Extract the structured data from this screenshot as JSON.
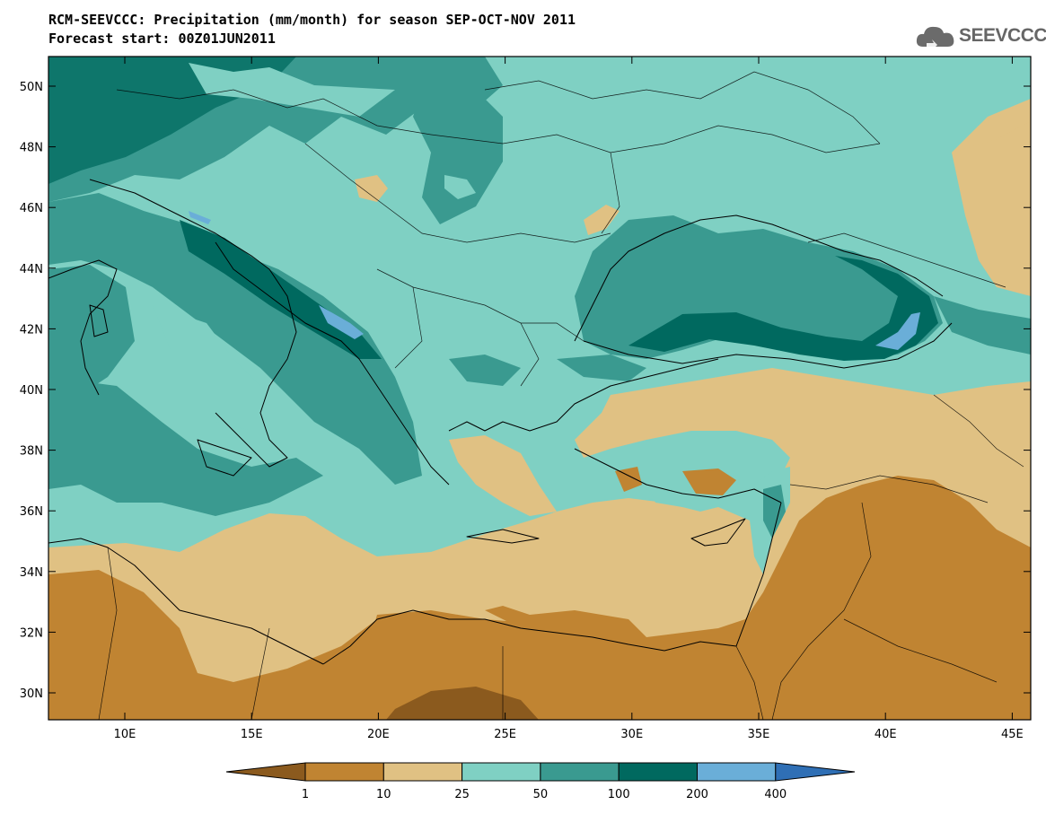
{
  "header": {
    "title_line1": "RCM-SEEVCCC: Precipitation (mm/month) for season SEP-OCT-NOV 2011",
    "title_line2": "Forecast start: 00Z01JUN2011"
  },
  "logo": {
    "text": "SEEVCCC",
    "icon": "cloud-icon"
  },
  "map": {
    "lat_labels": [
      "50N",
      "48N",
      "46N",
      "44N",
      "42N",
      "40N",
      "38N",
      "36N",
      "34N",
      "32N",
      "30N"
    ],
    "lon_labels": [
      "10E",
      "15E",
      "20E",
      "25E",
      "30E",
      "35E",
      "40E",
      "45E"
    ]
  },
  "colorbar": {
    "labels": [
      "1",
      "10",
      "25",
      "50",
      "100",
      "200",
      "400"
    ],
    "colors": [
      "#8b5a1e",
      "#c08432",
      "#e0c183",
      "#7fd0c3",
      "#3a9a90",
      "#00695f",
      "#6aaed8",
      "#2f6fb5"
    ]
  },
  "palette": {
    "very_dry": "#8b5a1e",
    "dry": "#c08432",
    "low": "#e0c183",
    "moderate": "#7fd0c3",
    "wet": "#3a9a90",
    "very_wet": "#00695f",
    "extreme": "#6aaed8"
  }
}
